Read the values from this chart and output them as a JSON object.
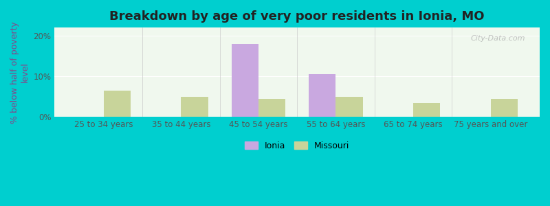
{
  "title": "Breakdown by age of very poor residents in Ionia, MO",
  "ylabel": "% below half of poverty\nlevel",
  "categories": [
    "25 to 34 years",
    "35 to 44 years",
    "45 to 54 years",
    "55 to 64 years",
    "65 to 74 years",
    "75 years and over"
  ],
  "ionia_values": [
    0,
    0,
    18.0,
    10.6,
    0,
    0
  ],
  "missouri_values": [
    6.5,
    5.0,
    4.5,
    5.0,
    3.5,
    4.5
  ],
  "ionia_color": "#c9a8e0",
  "missouri_color": "#c8d49a",
  "bar_width": 0.35,
  "ylim": [
    0,
    22
  ],
  "yticks": [
    0,
    10,
    20
  ],
  "ytick_labels": [
    "0%",
    "10%",
    "20%"
  ],
  "title_fontsize": 13,
  "axis_label_fontsize": 9,
  "tick_fontsize": 8.5,
  "legend_fontsize": 9,
  "background_outer": "#00cfcf",
  "background_inner_top": "#f0f8ee",
  "background_inner_bottom": "#e8f4e8",
  "watermark_text": "City-Data.com"
}
